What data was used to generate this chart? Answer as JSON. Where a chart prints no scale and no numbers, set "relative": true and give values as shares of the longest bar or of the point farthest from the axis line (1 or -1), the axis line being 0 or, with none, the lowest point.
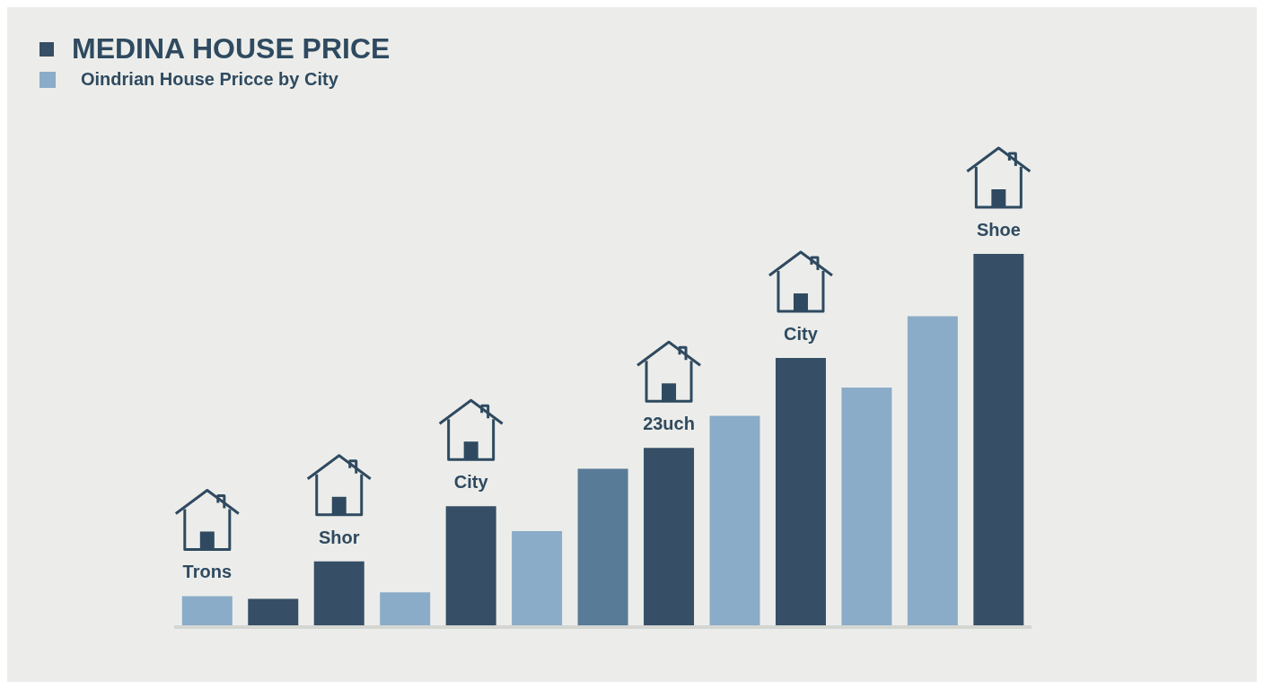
{
  "chart_data": {
    "type": "bar",
    "relative": true,
    "stacked": true,
    "legend": "top left",
    "categories": [
      null,
      null,
      null,
      null,
      null,
      null,
      null,
      null,
      null,
      null,
      null,
      null,
      null
    ],
    "series": [
      {
        "name": "MEDINA HOUSE PRICE",
        "color": "#364f66",
        "values": [
          null,
          0.076,
          0.176,
          null,
          0.324,
          null,
          null,
          0.48,
          null,
          0.721,
          null,
          null,
          1
        ]
      },
      {
        "name": "Oindrian House Pricce by City",
        "color": "#8aacc8",
        "values": [
          0.083,
          null,
          null,
          0.093,
          null,
          0.257,
          null,
          null,
          0.566,
          null,
          0.642,
          0.833,
          null
        ]
      },
      {
        "color": "#587b98",
        "values": [
          null,
          null,
          null,
          null,
          null,
          null,
          0.424,
          null,
          null,
          null,
          null,
          null,
          null
        ]
      }
    ],
    "value_labels": [
      "Trons",
      null,
      "Shor",
      null,
      "City",
      null,
      null,
      "23uch",
      null,
      "City",
      null,
      null,
      "Shoe"
    ]
  }
}
